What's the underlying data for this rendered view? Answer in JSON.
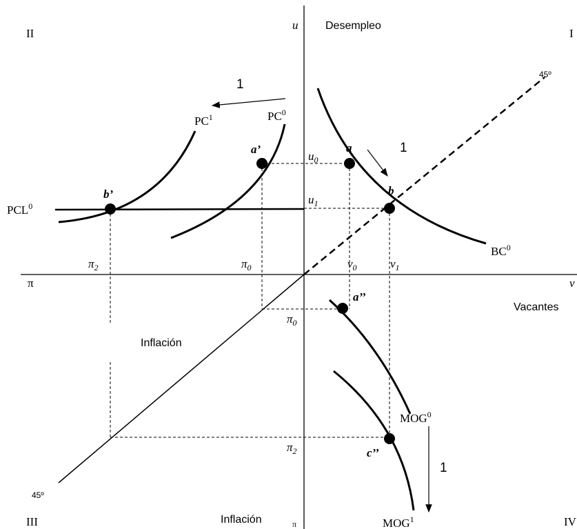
{
  "labels": [
    {
      "text": "II"
    },
    {
      "text": "u"
    },
    {
      "text": "Desempleo"
    },
    {
      "text": "I"
    },
    {
      "text": "1"
    },
    {
      "base": "PC",
      "sup": "1"
    },
    {
      "base": "PC",
      "sup": "0"
    },
    {
      "text": "a’"
    },
    {
      "text": "a"
    },
    {
      "text": "1"
    },
    {
      "text": "45º"
    },
    {
      "text": "b"
    },
    {
      "text": "b’"
    },
    {
      "base": "PCL",
      "sup": "0"
    },
    {
      "base": "u",
      "sub": "0"
    },
    {
      "base": "u",
      "sub": "1"
    },
    {
      "base": "BC",
      "sup": "0"
    },
    {
      "base": "π",
      "sub": "2"
    },
    {
      "base": "π",
      "sub": "0"
    },
    {
      "base": "v",
      "sub": "0"
    },
    {
      "base": "v",
      "sub": "1"
    },
    {
      "text": "π"
    },
    {
      "text": "v"
    },
    {
      "text": "a’’"
    },
    {
      "text": "Vacantes"
    },
    {
      "base": "π",
      "sub": "0"
    },
    {
      "text": "Inflación"
    },
    {
      "base": "MOG",
      "sup": "0"
    },
    {
      "base": "π",
      "sub": "2"
    },
    {
      "text": "c’’"
    },
    {
      "text": "1"
    },
    {
      "text": "45º"
    },
    {
      "text": "III"
    },
    {
      "text": "Inflación"
    },
    {
      "text": "π"
    },
    {
      "base": "MOG",
      "sup": "1"
    },
    {
      "text": "IV"
    }
  ]
}
